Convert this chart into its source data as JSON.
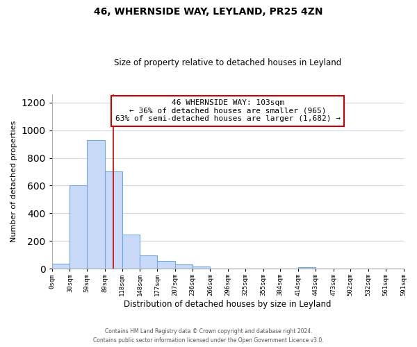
{
  "title": "46, WHERNSIDE WAY, LEYLAND, PR25 4ZN",
  "subtitle": "Size of property relative to detached houses in Leyland",
  "xlabel": "Distribution of detached houses by size in Leyland",
  "ylabel": "Number of detached properties",
  "bar_edges": [
    0,
    30,
    59,
    89,
    118,
    148,
    177,
    207,
    236,
    266,
    296,
    325,
    355,
    384,
    414,
    443,
    473,
    502,
    532,
    561,
    591
  ],
  "bar_heights": [
    35,
    600,
    930,
    700,
    245,
    95,
    55,
    30,
    18,
    0,
    0,
    0,
    0,
    0,
    10,
    0,
    0,
    0,
    0,
    0
  ],
  "bar_color": "#c9daf8",
  "bar_edge_color": "#6fa8dc",
  "property_line_x": 103,
  "property_line_color": "#cc0000",
  "annotation_line1": "46 WHERNSIDE WAY: 103sqm",
  "annotation_line2": "← 36% of detached houses are smaller (965)",
  "annotation_line3": "63% of semi-detached houses are larger (1,682) →",
  "annotation_box_edge_color": "#cc0000",
  "ylim": [
    0,
    1260
  ],
  "tick_labels": [
    "0sqm",
    "30sqm",
    "59sqm",
    "89sqm",
    "118sqm",
    "148sqm",
    "177sqm",
    "207sqm",
    "236sqm",
    "266sqm",
    "296sqm",
    "325sqm",
    "355sqm",
    "384sqm",
    "414sqm",
    "443sqm",
    "473sqm",
    "502sqm",
    "532sqm",
    "561sqm",
    "591sqm"
  ],
  "footnote1": "Contains HM Land Registry data © Crown copyright and database right 2024.",
  "footnote2": "Contains public sector information licensed under the Open Government Licence v3.0.",
  "background_color": "#ffffff",
  "grid_color": "#d0d8e8"
}
